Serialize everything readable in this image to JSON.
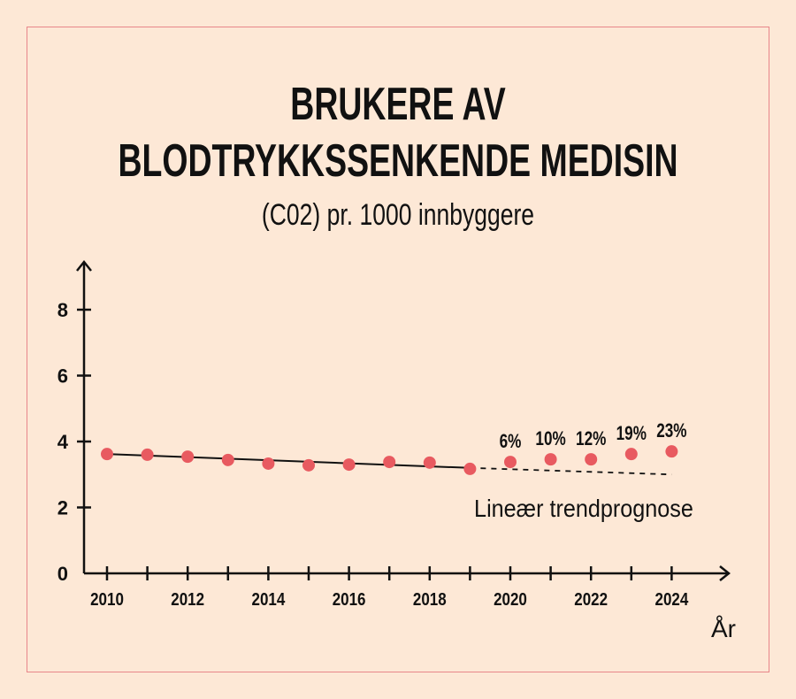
{
  "chart_data": {
    "type": "line",
    "title": "BRUKERE AV",
    "title_line2": "BLODTRYKKSSENKENDE MEDISIN",
    "subtitle": "(C02) pr. 1000 innbyggere",
    "xlabel": "År",
    "ylabel": "",
    "xlim": [
      2010,
      2024
    ],
    "ylim": [
      0,
      9
    ],
    "x_ticks": [
      2010,
      2011,
      2012,
      2013,
      2014,
      2015,
      2016,
      2017,
      2018,
      2019,
      2020,
      2021,
      2022,
      2023,
      2024
    ],
    "x_tick_labels": [
      "2010",
      "2012",
      "2014",
      "2016",
      "2018",
      "2020",
      "2022",
      "2024"
    ],
    "y_ticks": [
      0,
      2,
      4,
      6,
      8
    ],
    "y_tick_labels": [
      "0",
      "2",
      "4",
      "6",
      "8"
    ],
    "grid": false,
    "series": [
      {
        "type": "scatter",
        "color": "#e85a60",
        "x": [
          2010,
          2011,
          2012,
          2013,
          2014,
          2015,
          2016,
          2017,
          2018,
          2019,
          2020,
          2021,
          2022,
          2023,
          2024
        ],
        "y": [
          3.62,
          3.6,
          3.54,
          3.44,
          3.33,
          3.28,
          3.3,
          3.38,
          3.36,
          3.17,
          3.38,
          3.46,
          3.46,
          3.62,
          3.7
        ]
      },
      {
        "type": "line",
        "style": "solid",
        "color": "#111111",
        "x": [
          2010,
          2019
        ],
        "y": [
          3.62,
          3.2
        ]
      },
      {
        "type": "line",
        "style": "dashed",
        "color": "#111111",
        "x": [
          2019,
          2024
        ],
        "y": [
          3.2,
          3.0
        ]
      }
    ],
    "annotations": [
      {
        "x": 2020,
        "text": "6%"
      },
      {
        "x": 2021,
        "text": "10%"
      },
      {
        "x": 2022,
        "text": "12%"
      },
      {
        "x": 2023,
        "text": "19%"
      },
      {
        "x": 2024,
        "text": "23%"
      }
    ],
    "trend_label": "Lineær trendprognose",
    "colors": {
      "background": "#fde8d6",
      "frame": "#e8868a",
      "points": "#e85a60"
    }
  }
}
